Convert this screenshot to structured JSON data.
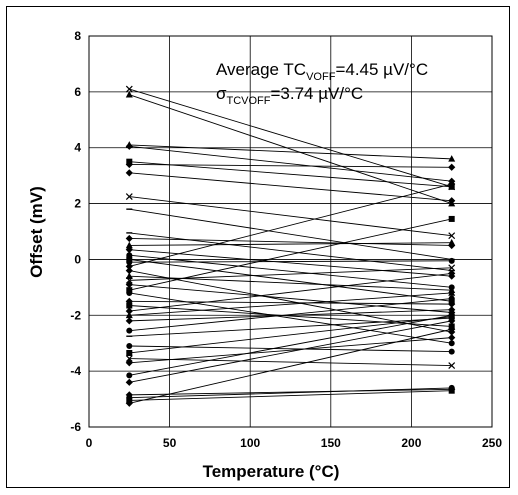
{
  "chart_data": {
    "type": "line",
    "title": "",
    "xlabel": "Temperature (°C)",
    "ylabel": "Offset (mV)",
    "xlim": [
      0,
      250
    ],
    "ylim": [
      -6,
      8
    ],
    "xticks": [
      "0",
      "50",
      "100",
      "150",
      "200",
      "250"
    ],
    "yticks": [
      "-6",
      "-4",
      "-2",
      "0",
      "2",
      "4",
      "6",
      "8"
    ],
    "grid": true,
    "legend": "none",
    "annotations": {
      "line1_main": "Average TC",
      "line1_sub": "VOFF",
      "line1_value": "=4.45 µV/°C",
      "line2_main": "σ",
      "line2_sub": "TCVOFF",
      "line2_value": "=3.74 µV/°C"
    },
    "x": [
      25,
      225
    ],
    "series": [
      {
        "values": [
          6.1,
          2.6
        ],
        "marker": "x"
      },
      {
        "values": [
          5.9,
          2.0
        ],
        "marker": "triangle"
      },
      {
        "values": [
          4.1,
          3.6
        ],
        "marker": "triangle"
      },
      {
        "values": [
          4.05,
          2.8
        ],
        "marker": "diamond"
      },
      {
        "values": [
          3.5,
          2.6
        ],
        "marker": "square"
      },
      {
        "values": [
          3.4,
          3.3
        ],
        "marker": "diamond"
      },
      {
        "values": [
          3.1,
          2.1
        ],
        "marker": "diamond"
      },
      {
        "values": [
          2.25,
          0.85
        ],
        "marker": "x"
      },
      {
        "values": [
          1.8,
          0.0
        ],
        "marker": "dash"
      },
      {
        "values": [
          0.95,
          -0.4
        ],
        "marker": "dash"
      },
      {
        "values": [
          0.75,
          0.5
        ],
        "marker": "diamond"
      },
      {
        "values": [
          0.5,
          0.6
        ],
        "marker": "triangle"
      },
      {
        "values": [
          0.35,
          -0.6
        ],
        "marker": "diamond"
      },
      {
        "values": [
          0.15,
          -1.0
        ],
        "marker": "circle"
      },
      {
        "values": [
          0.0,
          -1.5
        ],
        "marker": "square"
      },
      {
        "values": [
          -0.1,
          -0.05
        ],
        "marker": "circle"
      },
      {
        "values": [
          -0.25,
          2.7
        ],
        "marker": "diamond"
      },
      {
        "values": [
          -0.4,
          -2.6
        ],
        "marker": "diamond"
      },
      {
        "values": [
          -0.6,
          -1.1
        ],
        "marker": "triangle"
      },
      {
        "values": [
          -0.75,
          -0.3
        ],
        "marker": "x"
      },
      {
        "values": [
          -0.9,
          -1.9
        ],
        "marker": "diamond"
      },
      {
        "values": [
          -1.1,
          1.45
        ],
        "marker": "square"
      },
      {
        "values": [
          -1.2,
          -3.0
        ],
        "marker": "circle"
      },
      {
        "values": [
          -1.5,
          -1.6
        ],
        "marker": "diamond"
      },
      {
        "values": [
          -1.65,
          -2.4
        ],
        "marker": "square"
      },
      {
        "values": [
          -1.85,
          -0.5
        ],
        "marker": "diamond"
      },
      {
        "values": [
          -2.0,
          -1.2
        ],
        "marker": "triangle"
      },
      {
        "values": [
          -2.2,
          -1.8
        ],
        "marker": "diamond"
      },
      {
        "values": [
          -2.55,
          -1.4
        ],
        "marker": "circle"
      },
      {
        "values": [
          -2.75,
          -2.1
        ],
        "marker": "dash"
      },
      {
        "values": [
          -3.1,
          -3.3
        ],
        "marker": "circle"
      },
      {
        "values": [
          -3.35,
          -2.05
        ],
        "marker": "square"
      },
      {
        "values": [
          -3.55,
          -3.8
        ],
        "marker": "x"
      },
      {
        "values": [
          -3.7,
          -2.8
        ],
        "marker": "diamond"
      },
      {
        "values": [
          -4.15,
          -2.0
        ],
        "marker": "circle"
      },
      {
        "values": [
          -4.4,
          -2.2
        ],
        "marker": "diamond"
      },
      {
        "values": [
          -4.85,
          -4.65
        ],
        "marker": "diamond"
      },
      {
        "values": [
          -4.95,
          -4.6
        ],
        "marker": "circle"
      },
      {
        "values": [
          -5.05,
          -4.7
        ],
        "marker": "square"
      },
      {
        "values": [
          -5.15,
          -2.5
        ],
        "marker": "diamond"
      }
    ]
  }
}
